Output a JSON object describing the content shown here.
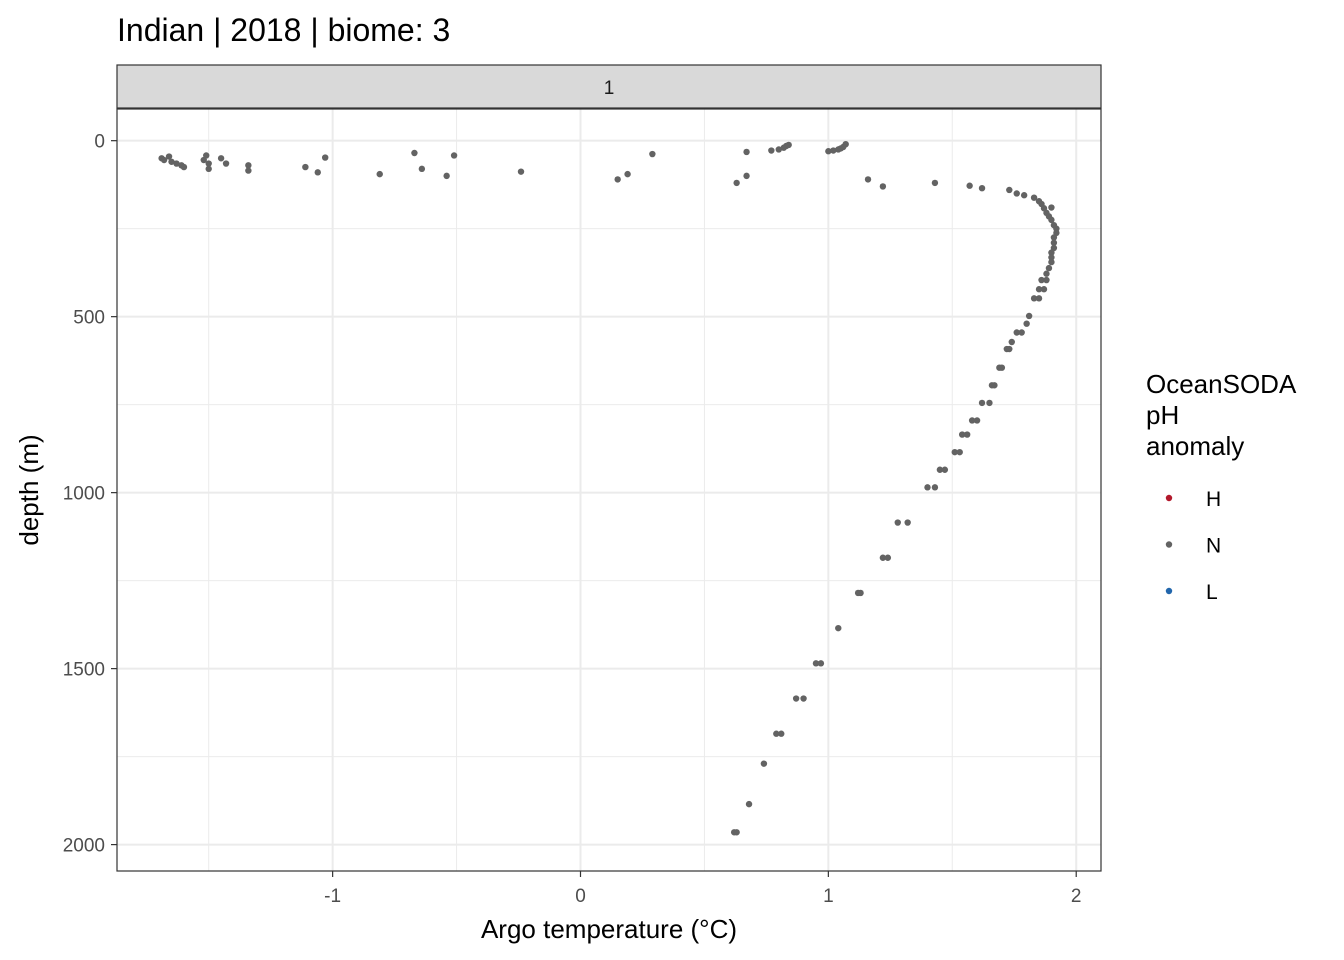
{
  "chart_data": {
    "type": "scatter",
    "title": "Indian | 2018 | biome: 3",
    "facet_label": "1",
    "xlabel": "Argo temperature (°C)",
    "ylabel": "depth (m)",
    "xlim": [
      -1.87,
      2.1
    ],
    "ylim": [
      -90,
      2075
    ],
    "y_reversed": true,
    "x_ticks": [
      -1,
      0,
      1,
      2
    ],
    "x_tick_labels": [
      "-1",
      "0",
      "1",
      "2"
    ],
    "y_ticks": [
      0,
      500,
      1000,
      1500,
      2000
    ],
    "y_tick_labels": [
      "0",
      "500",
      "1000",
      "1500",
      "2000"
    ],
    "grid": true,
    "legend": {
      "title": [
        "OceanSODA",
        "pH",
        "anomaly"
      ],
      "position": "right",
      "entries": [
        {
          "label": "H",
          "color": "#b2182b"
        },
        {
          "label": "N",
          "color": "#636363"
        },
        {
          "label": "L",
          "color": "#2166ac"
        }
      ]
    },
    "series": [
      {
        "name": "N",
        "color": "#636363",
        "points": [
          [
            -1.69,
            50
          ],
          [
            -1.68,
            55
          ],
          [
            -1.66,
            45
          ],
          [
            -1.65,
            60
          ],
          [
            -1.63,
            65
          ],
          [
            -1.61,
            70
          ],
          [
            -1.6,
            75
          ],
          [
            -1.52,
            55
          ],
          [
            -1.51,
            42
          ],
          [
            -1.5,
            65
          ],
          [
            -1.5,
            80
          ],
          [
            -1.45,
            50
          ],
          [
            -1.43,
            65
          ],
          [
            -1.34,
            70
          ],
          [
            -1.34,
            85
          ],
          [
            -1.11,
            75
          ],
          [
            -1.06,
            90
          ],
          [
            -1.03,
            48
          ],
          [
            -0.81,
            95
          ],
          [
            -0.67,
            35
          ],
          [
            -0.64,
            80
          ],
          [
            -0.54,
            100
          ],
          [
            -0.51,
            42
          ],
          [
            -0.24,
            88
          ],
          [
            0.15,
            110
          ],
          [
            0.19,
            95
          ],
          [
            0.29,
            38
          ],
          [
            0.63,
            120
          ],
          [
            0.67,
            100
          ],
          [
            0.67,
            32
          ],
          [
            0.77,
            28
          ],
          [
            0.8,
            25
          ],
          [
            0.82,
            20
          ],
          [
            0.83,
            15
          ],
          [
            0.84,
            12
          ],
          [
            1.0,
            30
          ],
          [
            1.02,
            28
          ],
          [
            1.04,
            25
          ],
          [
            1.05,
            22
          ],
          [
            1.06,
            18
          ],
          [
            1.07,
            10
          ],
          [
            1.16,
            110
          ],
          [
            1.22,
            130
          ],
          [
            1.43,
            120
          ],
          [
            1.57,
            128
          ],
          [
            1.62,
            135
          ],
          [
            1.73,
            140
          ],
          [
            1.76,
            150
          ],
          [
            1.79,
            155
          ],
          [
            1.83,
            162
          ],
          [
            1.85,
            172
          ],
          [
            1.86,
            180
          ],
          [
            1.87,
            192
          ],
          [
            1.9,
            190
          ],
          [
            1.88,
            205
          ],
          [
            1.89,
            215
          ],
          [
            1.9,
            225
          ],
          [
            1.91,
            240
          ],
          [
            1.92,
            250
          ],
          [
            1.92,
            262
          ],
          [
            1.91,
            275
          ],
          [
            1.91,
            290
          ],
          [
            1.91,
            305
          ],
          [
            1.9,
            318
          ],
          [
            1.9,
            332
          ],
          [
            1.9,
            345
          ],
          [
            1.89,
            362
          ],
          [
            1.88,
            378
          ],
          [
            1.86,
            396
          ],
          [
            1.88,
            396
          ],
          [
            1.85,
            422
          ],
          [
            1.87,
            422
          ],
          [
            1.83,
            448
          ],
          [
            1.85,
            448
          ],
          [
            1.81,
            498
          ],
          [
            1.8,
            520
          ],
          [
            1.76,
            545
          ],
          [
            1.78,
            545
          ],
          [
            1.74,
            572
          ],
          [
            1.72,
            592
          ],
          [
            1.73,
            592
          ],
          [
            1.69,
            645
          ],
          [
            1.7,
            645
          ],
          [
            1.66,
            695
          ],
          [
            1.67,
            695
          ],
          [
            1.62,
            745
          ],
          [
            1.65,
            745
          ],
          [
            1.58,
            795
          ],
          [
            1.6,
            795
          ],
          [
            1.54,
            835
          ],
          [
            1.56,
            835
          ],
          [
            1.51,
            885
          ],
          [
            1.53,
            885
          ],
          [
            1.45,
            935
          ],
          [
            1.47,
            935
          ],
          [
            1.4,
            985
          ],
          [
            1.43,
            985
          ],
          [
            1.28,
            1085
          ],
          [
            1.32,
            1085
          ],
          [
            1.22,
            1185
          ],
          [
            1.24,
            1185
          ],
          [
            1.12,
            1285
          ],
          [
            1.13,
            1285
          ],
          [
            1.04,
            1385
          ],
          [
            0.95,
            1485
          ],
          [
            0.97,
            1485
          ],
          [
            0.87,
            1585
          ],
          [
            0.9,
            1585
          ],
          [
            0.79,
            1685
          ],
          [
            0.81,
            1685
          ],
          [
            0.74,
            1770
          ],
          [
            0.68,
            1885
          ],
          [
            0.62,
            1965
          ],
          [
            0.63,
            1965
          ]
        ]
      }
    ]
  }
}
